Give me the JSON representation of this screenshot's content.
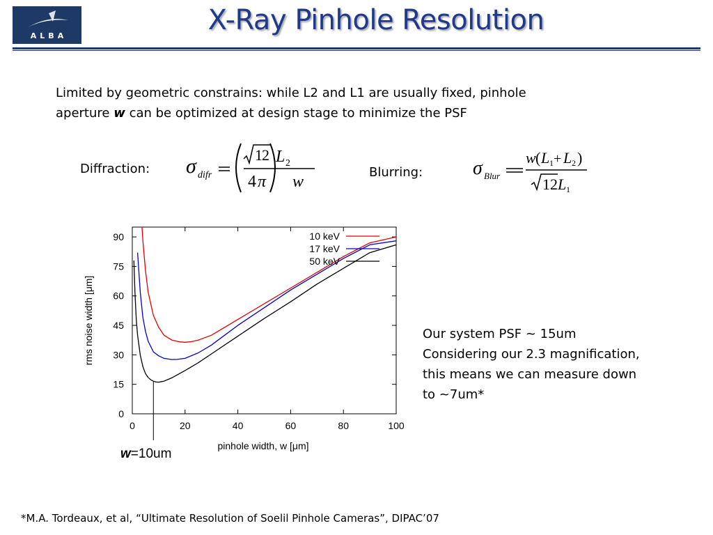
{
  "logo": {
    "text": "ALBA"
  },
  "title": "X-Ray Pinhole Resolution",
  "intro": {
    "line1": "Limited by geometric constrains: while L2 and L1 are usually fixed, pinhole",
    "line2_pre": "aperture ",
    "line2_bold": "w",
    "line2_post": " can be optimized at design stage to minimize the PSF"
  },
  "formulas": {
    "diffraction_label": "Diffraction:",
    "blurring_label": "Blurring:"
  },
  "summary": {
    "lines": [
      "Our system PSF ~ 15um",
      "Considering our 2.3 magnification,",
      "this means we can measure down",
      "to ~7um*"
    ]
  },
  "annotation": {
    "bold": "w",
    "rest": "=10um"
  },
  "footnote": "*M.A. Tordeaux, et al, “Ultimate Resolution of Soelil Pinhole Cameras”, DIPAC’07",
  "colors": {
    "series_10": "#e00000",
    "series_17": "#0000cc",
    "series_50": "#000000",
    "title": "#1f3a8a",
    "rule": "#1d3a66"
  },
  "chart_data": {
    "type": "line",
    "xlabel": "pinhole width, w [μm]",
    "ylabel": "rms noise width [μm]",
    "xlim": [
      0,
      100
    ],
    "ylim": [
      0,
      95
    ],
    "xticks": [
      0,
      20,
      40,
      60,
      80,
      100
    ],
    "yticks": [
      0,
      15,
      30,
      45,
      60,
      75,
      90
    ],
    "legend_position": "top-right",
    "marker_line_x": 8,
    "series": [
      {
        "name": "10 keV",
        "color": "#e00000",
        "x": [
          3,
          4,
          5,
          6,
          8,
          10,
          12,
          15,
          18,
          20,
          22,
          25,
          30,
          35,
          40,
          50,
          60,
          70,
          80,
          90,
          100
        ],
        "y": [
          110,
          88,
          73,
          62,
          50,
          44,
          40,
          37.5,
          36.6,
          36.4,
          36.6,
          37.5,
          40,
          44,
          48,
          56,
          64,
          72,
          80,
          87,
          90
        ]
      },
      {
        "name": "17 keV",
        "color": "#0000cc",
        "x": [
          2,
          3,
          4,
          5,
          6,
          8,
          10,
          12,
          15,
          17,
          20,
          25,
          30,
          35,
          40,
          50,
          60,
          70,
          80,
          90,
          100
        ],
        "y": [
          82,
          62,
          49,
          42,
          37,
          31.5,
          29.5,
          28.2,
          27.6,
          27.7,
          28.2,
          31,
          35,
          40,
          45,
          54,
          63,
          71,
          79,
          86,
          88
        ]
      },
      {
        "name": "50 keV",
        "color": "#000000",
        "x": [
          0.6,
          1,
          1.5,
          2,
          3,
          4,
          5,
          6,
          7,
          8,
          9,
          10,
          12,
          15,
          20,
          25,
          30,
          40,
          50,
          60,
          70,
          80,
          90,
          100
        ],
        "y": [
          78,
          62,
          48,
          40,
          30,
          24,
          20.5,
          18.5,
          17.3,
          16.6,
          16.2,
          16.1,
          16.6,
          18.3,
          22,
          26,
          30.5,
          39.5,
          48.5,
          57,
          66,
          74,
          82,
          86
        ]
      }
    ]
  }
}
